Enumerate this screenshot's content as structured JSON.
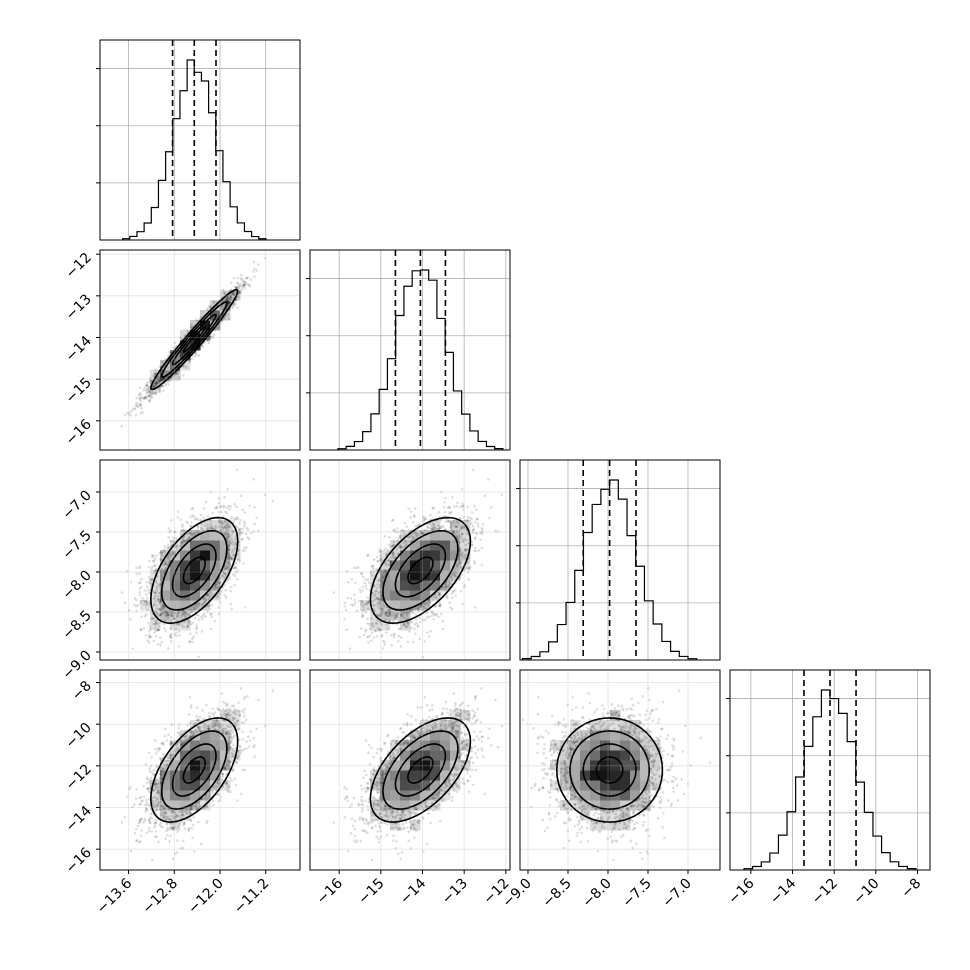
{
  "chart_data": {
    "type": "corner",
    "parameters": [
      {
        "mean": -12.45,
        "sd": 0.38,
        "range": [
          -14.1,
          -10.6
        ],
        "quantiles": [
          -12.83,
          -12.45,
          -12.07
        ],
        "ticks": [
          -13.6,
          -12.8,
          -12.0,
          -11.2
        ],
        "tick_labels": [
          "−13.6",
          "−12.8",
          "−12.0",
          "−11.2"
        ]
      },
      {
        "mean": -14.05,
        "sd": 0.6,
        "range": [
          -16.7,
          -11.9
        ],
        "quantiles": [
          -14.65,
          -14.05,
          -13.45
        ],
        "ticks": [
          -16,
          -15,
          -14,
          -13,
          -12
        ],
        "tick_labels": [
          "−16",
          "−15",
          "−14",
          "−13",
          "−12"
        ]
      },
      {
        "mean": -7.98,
        "sd": 0.33,
        "range": [
          -9.1,
          -6.6
        ],
        "quantiles": [
          -8.31,
          -7.98,
          -7.65
        ],
        "ticks": [
          -9.0,
          -8.5,
          -8.0,
          -7.5,
          -7.0
        ],
        "tick_labels": [
          "−9.0",
          "−8.5",
          "−8.0",
          "−7.5",
          "−7.0"
        ]
      },
      {
        "mean": -12.2,
        "sd": 1.25,
        "range": [
          -17.0,
          -7.4
        ],
        "quantiles": [
          -13.45,
          -12.2,
          -10.95
        ],
        "ticks": [
          -16,
          -14,
          -12,
          -10,
          -8
        ],
        "tick_labels": [
          "−16",
          "−14",
          "−12",
          "−10",
          "−8"
        ]
      }
    ],
    "correlations": [
      [
        1.0,
        0.97,
        0.55,
        0.55
      ],
      [
        0.97,
        1.0,
        0.55,
        0.55
      ],
      [
        0.55,
        0.55,
        1.0,
        0.0
      ],
      [
        0.55,
        0.55,
        0.0,
        1.0
      ]
    ],
    "histogram_bins": 20,
    "grid": true,
    "contour_levels_sigma": [
      0.5,
      1.0,
      1.5,
      2.0
    ],
    "title": "",
    "axis_labels": []
  }
}
